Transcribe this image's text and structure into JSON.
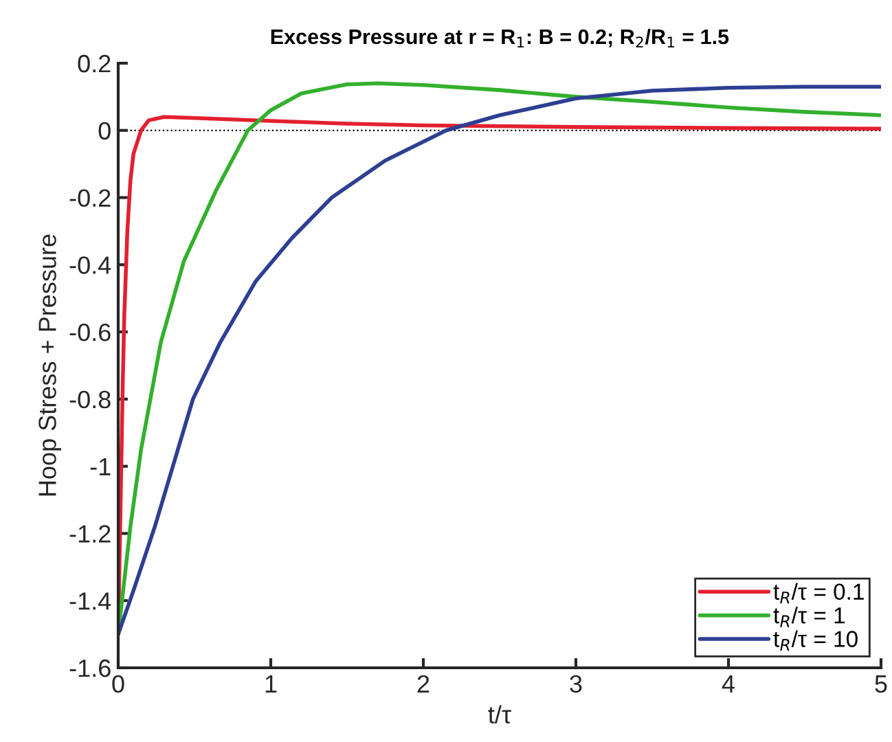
{
  "chart_data": {
    "type": "line",
    "title": "Excess Pressure at r = R$_{1}$: B = 0.2; R$_{2}$/R$_{1}$ = 1.5",
    "xlabel": "t/τ",
    "ylabel": "Hoop Stress + Pressure",
    "xlim": [
      0,
      5
    ],
    "xticks": [
      0,
      1,
      2,
      3,
      4,
      5
    ],
    "ylim": [
      -1.6,
      0.2
    ],
    "yticks": [
      -1.6,
      -1.4,
      -1.2,
      -1,
      -0.8,
      -0.6,
      -0.4,
      -0.2,
      0,
      0.2
    ],
    "grid": false,
    "legend": "bottom right",
    "line_style": "solid",
    "marker": "none",
    "ref_lines": [
      {
        "axis": "y",
        "value": 0,
        "color": "#000000",
        "line_style": "dotted"
      }
    ],
    "series": [
      {
        "name": "t$_{R}$/τ = 0.1",
        "color": "#e3202f",
        "x": [
          0,
          0.01,
          0.02,
          0.03,
          0.04,
          0.06,
          0.08,
          0.1,
          0.15,
          0.2,
          0.3,
          0.5,
          1,
          1.5,
          2,
          3,
          4,
          5
        ],
        "values": [
          -1.5,
          -1.25,
          -1.0,
          -0.75,
          -0.55,
          -0.3,
          -0.15,
          -0.07,
          0.0,
          0.03,
          0.04,
          0.037,
          0.028,
          0.02,
          0.015,
          0.01,
          0.007,
          0.005
        ]
      },
      {
        "name": "t$_{R}$/τ = 1",
        "color": "#33b02d",
        "x": [
          0,
          0.08,
          0.15,
          0.28,
          0.43,
          0.64,
          0.85,
          1.0,
          1.2,
          1.5,
          1.7,
          2,
          2.5,
          3,
          3.5,
          4,
          4.5,
          5
        ],
        "values": [
          -1.5,
          -1.18,
          -0.95,
          -0.63,
          -0.39,
          -0.18,
          0,
          0.06,
          0.11,
          0.137,
          0.14,
          0.135,
          0.12,
          0.1,
          0.085,
          0.068,
          0.055,
          0.045
        ]
      },
      {
        "name": "t$_{R}$/τ = 10",
        "color": "#2e3f93",
        "x": [
          0,
          0.1,
          0.24,
          0.49,
          0.67,
          0.9,
          1.14,
          1.4,
          1.75,
          2.15,
          2.5,
          3,
          3.5,
          4,
          4.5,
          5
        ],
        "values": [
          -1.5,
          -1.37,
          -1.18,
          -0.8,
          -0.63,
          -0.45,
          -0.32,
          -0.2,
          -0.09,
          0,
          0.045,
          0.095,
          0.118,
          0.127,
          0.13,
          0.13
        ]
      }
    ]
  }
}
